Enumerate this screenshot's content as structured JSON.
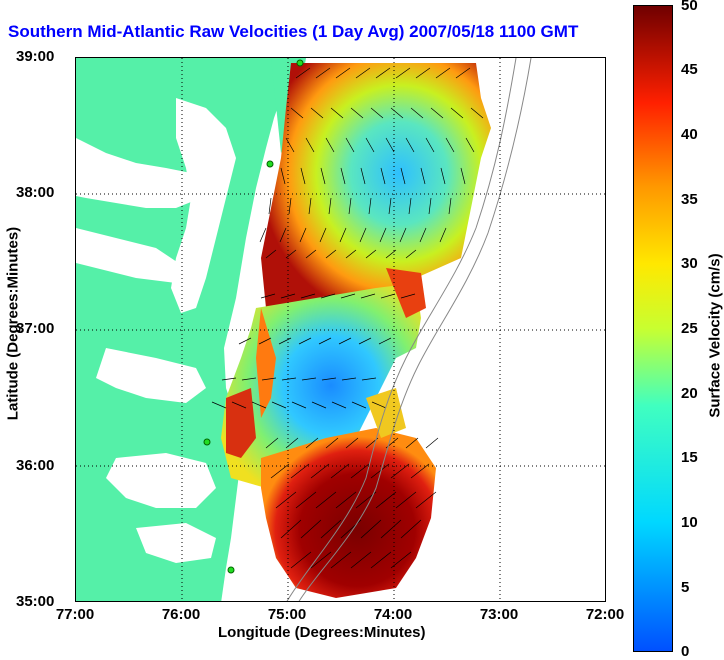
{
  "map": {
    "title": "Southern Mid-Atlantic Raw Velocities (1 Day Avg) 2007/05/18 1100 GMT",
    "xlabel": "Longitude (Degrees:Minutes)",
    "ylabel": "Latitude (Degrees:Minutes)",
    "lon_range": [
      -77,
      -72
    ],
    "lat_range": [
      35,
      39
    ],
    "x_ticks": [
      "77:00",
      "76:00",
      "75:00",
      "74:00",
      "73:00",
      "72:00"
    ],
    "y_ticks": [
      "39:00",
      "38:00",
      "37:00",
      "36:00",
      "35:00"
    ],
    "land_color": "#55f0a8",
    "grid": "dotted"
  },
  "colorbar": {
    "label": "Surface Velocity (cm/s)",
    "range": [
      0,
      50
    ],
    "ticks": [
      "50",
      "45",
      "40",
      "35",
      "30",
      "25",
      "20",
      "15",
      "10",
      "5",
      "0"
    ],
    "colormap": "jet"
  }
}
